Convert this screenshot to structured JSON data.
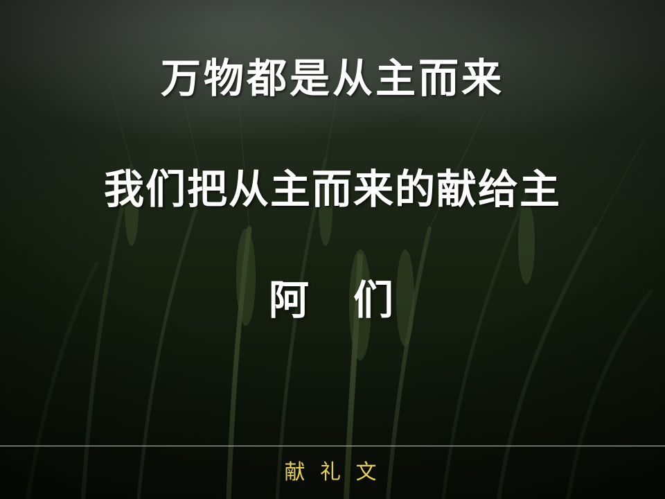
{
  "slide": {
    "line1": "万物都是从主而来",
    "line2": "我们把从主而来的献给主",
    "line3_a": "阿",
    "line3_b": "们",
    "footer": "献 礼 文"
  },
  "colors": {
    "text": "#ffffff",
    "footer_text": "#e8d34a",
    "divider": "#d9cf7a",
    "background": "#16200f"
  }
}
